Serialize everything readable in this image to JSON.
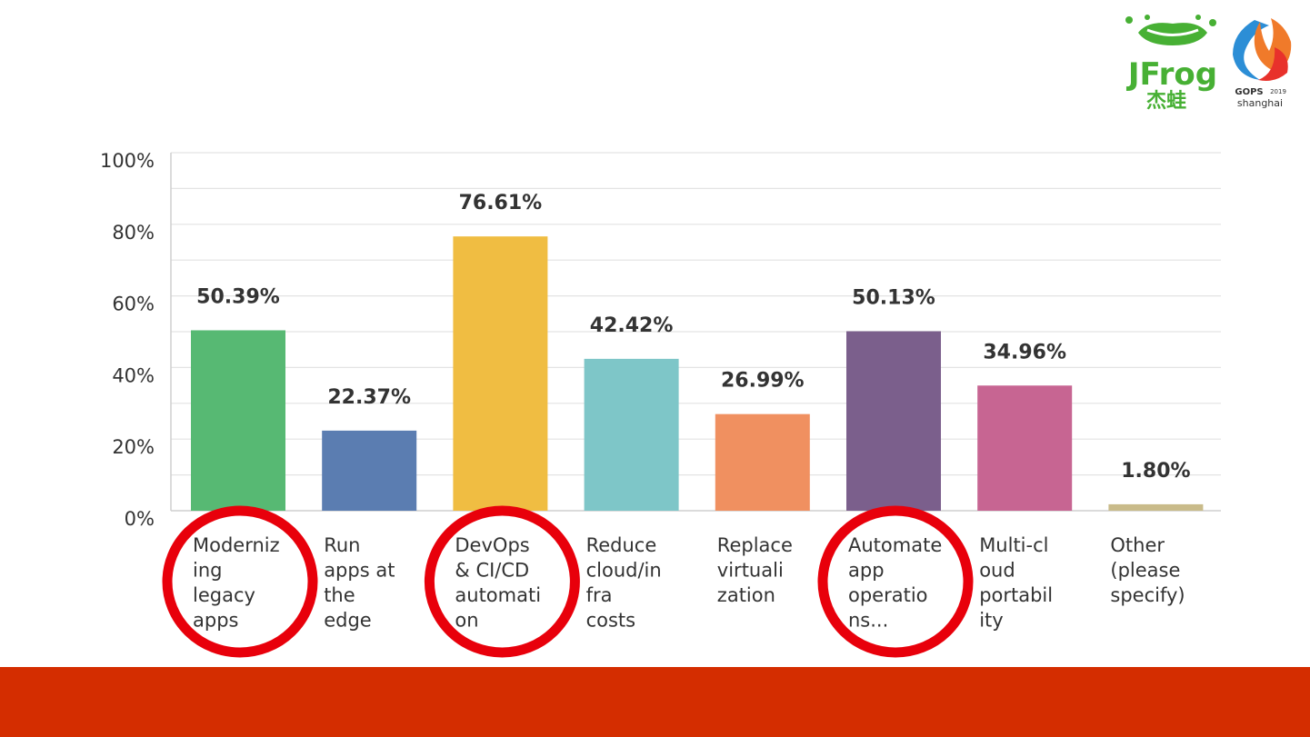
{
  "logos": {
    "jfrog": {
      "text": "JFrog",
      "subtext": "杰蛙",
      "color": "#47b034"
    },
    "gops": {
      "text": "GOPS",
      "year": "2019",
      "city": "shanghai"
    }
  },
  "colors": {
    "footer": "#d42d00",
    "highlight_circle": "#e8000b",
    "gridline": "#e3e3e3",
    "axis": "#cfcfcf"
  },
  "chart_data": {
    "type": "bar",
    "categories": [
      [
        "Moderniz",
        "ing",
        "legacy",
        "apps"
      ],
      [
        "Run",
        "apps at",
        "the",
        "edge"
      ],
      [
        "DevOps",
        "& CI/CD",
        "automati",
        "on"
      ],
      [
        "Reduce",
        "cloud/in",
        "fra",
        "costs"
      ],
      [
        "Replace",
        "virtuali",
        "zation"
      ],
      [
        "Automate",
        "app",
        "operatio",
        "ns..."
      ],
      [
        "Multi-cl",
        "oud",
        "portabil",
        "ity"
      ],
      [
        "Other",
        "(please",
        "specify)"
      ]
    ],
    "values": [
      50.39,
      22.37,
      76.61,
      42.42,
      26.99,
      50.13,
      34.96,
      1.8
    ],
    "data_labels": [
      "50.39%",
      "22.37%",
      "76.61%",
      "42.42%",
      "26.99%",
      "50.13%",
      "34.96%",
      "1.80%"
    ],
    "bar_colors": [
      "#57b973",
      "#5b7db1",
      "#f0bd42",
      "#7ec6c8",
      "#f09060",
      "#7b5f8c",
      "#c76592",
      "#c9bb8a"
    ],
    "ylim": [
      0,
      100
    ],
    "yticks": [
      0,
      20,
      40,
      60,
      80,
      100
    ],
    "ytick_labels": [
      "0%",
      "20%",
      "40%",
      "60%",
      "80%",
      "100%"
    ],
    "grid": true,
    "highlighted_categories": [
      0,
      2,
      5
    ]
  }
}
